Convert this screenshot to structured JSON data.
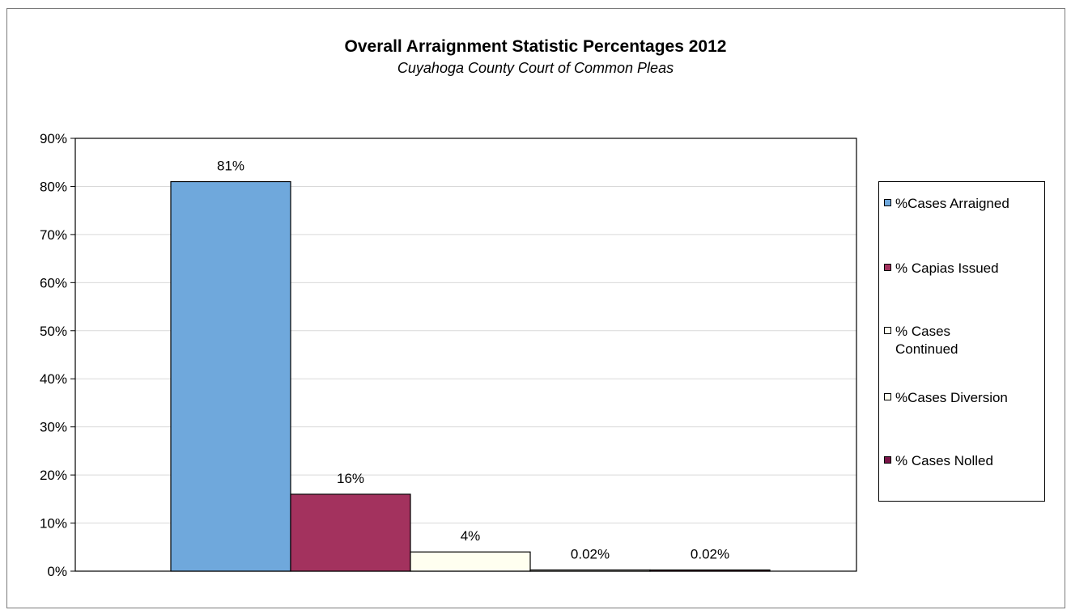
{
  "chart_data": {
    "type": "bar",
    "title": "Overall Arraignment Statistic Percentages 2012",
    "subtitle": "Cuyahoga County Court of Common Pleas",
    "xlabel": "",
    "ylabel": "",
    "ylim": [
      0,
      90
    ],
    "ytick_labels": [
      "0%",
      "10%",
      "20%",
      "30%",
      "40%",
      "50%",
      "60%",
      "70%",
      "80%",
      "90%"
    ],
    "grid": true,
    "legend_position": "right",
    "series": [
      {
        "name": "%Cases Arraigned",
        "value": 81,
        "label": "81%",
        "color": "#6fa8dc"
      },
      {
        "name": "% Capias Issued",
        "value": 16,
        "label": "16%",
        "color": "#a3325e"
      },
      {
        "name": "% Cases Continued",
        "value": 4,
        "label": "4%",
        "color": "#fffff0"
      },
      {
        "name": "%Cases Diversion",
        "value": 0.02,
        "label": "0.02%",
        "color": "#fffff0"
      },
      {
        "name": "% Cases Nolled",
        "value": 0.02,
        "label": "0.02%",
        "color": "#7a1448"
      }
    ]
  }
}
